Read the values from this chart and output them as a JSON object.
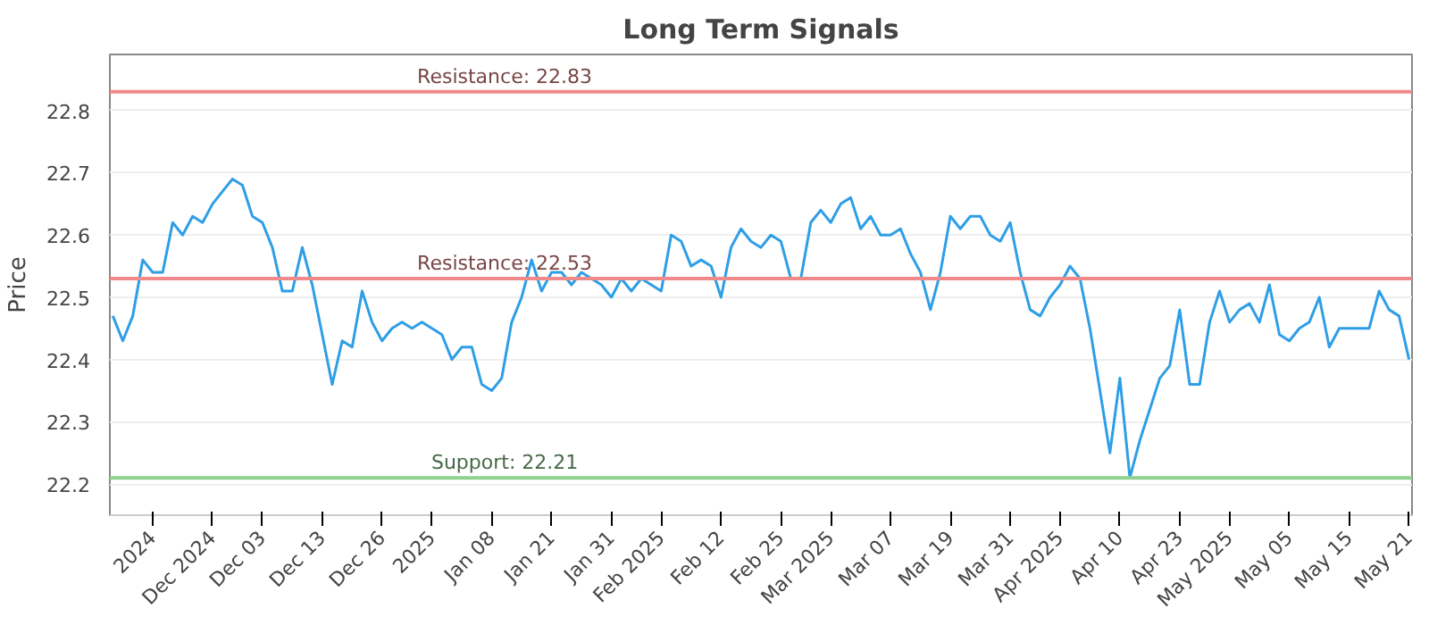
{
  "chart_data": {
    "type": "line",
    "title": "Long Term Signals",
    "ylabel": "Price",
    "categories": [
      null,
      null,
      null,
      null,
      "2024",
      null,
      null,
      null,
      null,
      null,
      "Dec 2024",
      null,
      null,
      null,
      null,
      "Dec 03",
      null,
      null,
      null,
      null,
      null,
      "Dec 13",
      null,
      null,
      null,
      null,
      null,
      "Dec 26",
      null,
      null,
      null,
      null,
      "2025",
      null,
      null,
      null,
      null,
      null,
      "Jan 08",
      null,
      null,
      null,
      null,
      null,
      "Jan 21",
      null,
      null,
      null,
      null,
      null,
      "Jan 31",
      null,
      null,
      null,
      null,
      "Feb 2025",
      null,
      null,
      null,
      null,
      null,
      "Feb 12",
      null,
      null,
      null,
      null,
      null,
      "Feb 25",
      null,
      null,
      null,
      null,
      "Mar 2025",
      null,
      null,
      null,
      null,
      null,
      "Mar 07",
      null,
      null,
      null,
      null,
      null,
      "Mar 19",
      null,
      null,
      null,
      null,
      null,
      "Mar 31",
      null,
      null,
      null,
      null,
      "Apr 2025",
      null,
      null,
      null,
      null,
      null,
      "Apr 10",
      null,
      null,
      null,
      null,
      null,
      "Apr 23",
      null,
      null,
      null,
      null,
      "May 2025",
      null,
      null,
      null,
      null,
      null,
      "May 05",
      null,
      null,
      null,
      null,
      null,
      "May 15",
      null,
      null,
      null,
      null,
      null,
      "May 21"
    ],
    "series": [
      {
        "color": "#2e9ee6",
        "values": [
          22.47,
          22.43,
          22.47,
          22.56,
          22.54,
          22.54,
          22.62,
          22.6,
          22.63,
          22.62,
          22.65,
          22.67,
          22.69,
          22.68,
          22.63,
          22.62,
          22.58,
          22.51,
          22.51,
          22.58,
          22.52,
          22.44,
          22.36,
          22.43,
          22.42,
          22.51,
          22.46,
          22.43,
          22.45,
          22.46,
          22.45,
          22.46,
          22.45,
          22.44,
          22.4,
          22.42,
          22.42,
          22.36,
          22.35,
          22.37,
          22.46,
          22.5,
          22.56,
          22.51,
          22.54,
          22.54,
          22.52,
          22.54,
          22.53,
          22.52,
          22.5,
          22.53,
          22.51,
          22.53,
          22.52,
          22.51,
          22.6,
          22.59,
          22.55,
          22.56,
          22.55,
          22.5,
          22.58,
          22.61,
          22.59,
          22.58,
          22.6,
          22.59,
          22.53,
          22.53,
          22.62,
          22.64,
          22.62,
          22.65,
          22.66,
          22.61,
          22.63,
          22.6,
          22.6,
          22.61,
          22.57,
          22.54,
          22.48,
          22.54,
          22.63,
          22.61,
          22.63,
          22.63,
          22.6,
          22.59,
          22.62,
          22.54,
          22.48,
          22.47,
          22.5,
          22.52,
          22.55,
          22.53,
          22.45,
          22.35,
          22.25,
          22.37,
          22.21,
          22.27,
          22.32,
          22.37,
          22.39,
          22.48,
          22.36,
          22.36,
          22.46,
          22.51,
          22.46,
          22.48,
          22.49,
          22.46,
          22.52,
          22.44,
          22.43,
          22.45,
          22.46,
          22.5,
          22.42,
          22.45,
          22.45,
          22.45,
          22.45,
          22.51,
          22.48,
          22.47,
          22.4
        ]
      }
    ],
    "ylim": [
      22.15,
      22.89
    ],
    "yticks": [
      22.2,
      22.3,
      22.4,
      22.5,
      22.6,
      22.7,
      22.8
    ],
    "grid": "y",
    "marker": "none",
    "line_style": "solid",
    "ref_lines": [
      {
        "axis": "y",
        "value": 22.83,
        "label": "Resistance: 22.83",
        "color": "#f08a8a"
      },
      {
        "axis": "y",
        "value": 22.53,
        "label": "Resistance: 22.53",
        "color": "#f08a8a"
      },
      {
        "axis": "y",
        "value": 22.21,
        "label": "Support: 22.21",
        "color": "#8fd18f"
      }
    ]
  }
}
